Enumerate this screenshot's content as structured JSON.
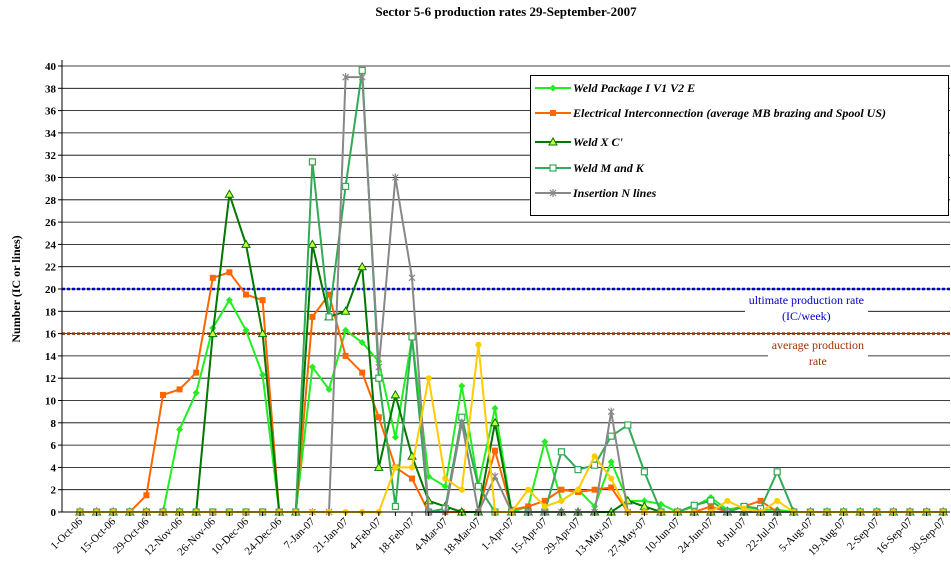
{
  "chart_data": {
    "type": "line",
    "title": "Sector 5-6 production rates 29-September-2007",
    "y_label": "Number (IC or lines)",
    "categories": [
      "1-Oct-06",
      null,
      "15-Oct-06",
      null,
      "29-Oct-06",
      null,
      "12-Nov-06",
      null,
      "26-Nov-06",
      null,
      "10-Dec-06",
      null,
      "24-Dec-06",
      null,
      "7-Jan-07",
      null,
      "21-Jan-07",
      null,
      "4-Feb-07",
      null,
      "18-Feb-07",
      null,
      "4-Mar-07",
      null,
      "18-Mar-07",
      null,
      "1-Apr-07",
      null,
      "15-Apr-07",
      null,
      "29-Apr-07",
      null,
      "13-May-07",
      null,
      "27-May-07",
      null,
      "10-Jun-07",
      null,
      "24-Jun-07",
      null,
      "8-Jul-07",
      null,
      "22-Jul-07",
      null,
      "5-Aug-07",
      null,
      "19-Aug-07",
      null,
      "2-Sep-07",
      null,
      "16-Sep-07",
      null,
      "30-Sep-07"
    ],
    "ylim": [
      0,
      40
    ],
    "yticks": [
      0,
      2,
      4,
      6,
      8,
      10,
      12,
      14,
      16,
      18,
      20,
      22,
      24,
      26,
      28,
      30,
      32,
      34,
      36,
      38,
      40
    ],
    "grid": true,
    "series": [
      {
        "name": "Weld Package I V1 V2  E",
        "color": "#22ee22",
        "marker": "diamond",
        "values": [
          0,
          0,
          0,
          0,
          0,
          0,
          7.4,
          10.7,
          16.5,
          19,
          16.3,
          12.3,
          0,
          0,
          13,
          11,
          16.3,
          15.2,
          13.5,
          6.7,
          15.6,
          3.2,
          2.3,
          11.3,
          2.4,
          9.3,
          0,
          0.5,
          6.3,
          1,
          2,
          0.5,
          4.5,
          1,
          1,
          0.7,
          0,
          0.5,
          1.3,
          0.2,
          0.5,
          0.2,
          0.2,
          0,
          0,
          0,
          0,
          0,
          0,
          0,
          0,
          0,
          0
        ]
      },
      {
        "name": "Electrical Interconnection (average MB brazing and Spool US)",
        "color": "#ff6600",
        "marker": "square-filled",
        "values": [
          0,
          0,
          0,
          0,
          1.5,
          10.5,
          11,
          12.5,
          21,
          21.5,
          19.5,
          19,
          0,
          0,
          17.5,
          19.5,
          14,
          12.5,
          8.5,
          4,
          3,
          0,
          0,
          0,
          0,
          5.5,
          0.2,
          0.5,
          1,
          2,
          1.8,
          2,
          2.2,
          0,
          0,
          0,
          0,
          0,
          0.5,
          0,
          0.5,
          1,
          0,
          0,
          0,
          0,
          0,
          0,
          0,
          0,
          0,
          0,
          0
        ]
      },
      {
        "name": "Weld  X C'",
        "color": "#007700",
        "marker": "triangle",
        "values": [
          0,
          0,
          0,
          0,
          0,
          0,
          0,
          0,
          16,
          28.5,
          24,
          16,
          0,
          0,
          24,
          17.5,
          18,
          22,
          4,
          10.5,
          5,
          1,
          0.5,
          0,
          0,
          8,
          0,
          0,
          0,
          0,
          0,
          0,
          0,
          1,
          0.5,
          0,
          0,
          0,
          0,
          0,
          0,
          0,
          0,
          0,
          0,
          0,
          0,
          0,
          0,
          0,
          0,
          0,
          0
        ]
      },
      {
        "name": "Weld M and K",
        "color": "#33aa55",
        "marker": "square",
        "values": [
          0,
          0,
          0,
          0,
          0,
          0,
          0,
          0,
          0,
          0,
          0,
          0,
          0,
          0,
          31.4,
          17.5,
          29.2,
          39.6,
          12,
          0.5,
          15.7,
          0,
          0.3,
          8.5,
          2.3,
          0,
          0,
          0,
          0,
          5.4,
          3.8,
          4.2,
          6.8,
          7.8,
          3.6,
          0,
          0,
          0.6,
          1,
          0,
          0.5,
          0.3,
          3.6,
          0,
          0,
          0,
          0,
          0,
          0,
          0,
          0,
          0,
          0
        ]
      },
      {
        "name": "Insertion N lines",
        "color": "#888888",
        "marker": "star",
        "values": [
          0,
          0,
          0,
          0,
          0,
          0,
          0,
          0,
          0,
          0,
          0,
          0,
          0,
          0,
          0,
          0,
          39,
          39,
          13,
          30,
          21,
          0,
          0,
          8,
          0,
          3.2,
          0,
          0,
          0,
          0,
          0,
          0,
          9,
          0,
          0,
          0,
          0,
          0,
          0,
          0,
          0,
          0,
          0,
          0,
          0,
          0,
          0,
          0,
          0,
          0,
          0,
          0,
          0
        ]
      },
      {
        "name": null,
        "color": "#ffcc00",
        "marker": "circle",
        "values": [
          0,
          0,
          0,
          0,
          0,
          0,
          0,
          0,
          0,
          0,
          0,
          0,
          0,
          0,
          0,
          0,
          0,
          0,
          0,
          4,
          4,
          12,
          3,
          2,
          15,
          0,
          0,
          2,
          0.5,
          1,
          2,
          5,
          3,
          0,
          0,
          0,
          0,
          0,
          0,
          1,
          0.3,
          0,
          1,
          0,
          0,
          0,
          0,
          0,
          0,
          0,
          0,
          0,
          0
        ]
      }
    ],
    "reference_lines": [
      {
        "value": 20,
        "color": "#0000cc",
        "label": [
          "ultimate production rate",
          "(IC/week)"
        ]
      },
      {
        "value": 16,
        "color": "#993300",
        "label": [
          "average production",
          "rate"
        ]
      }
    ]
  }
}
